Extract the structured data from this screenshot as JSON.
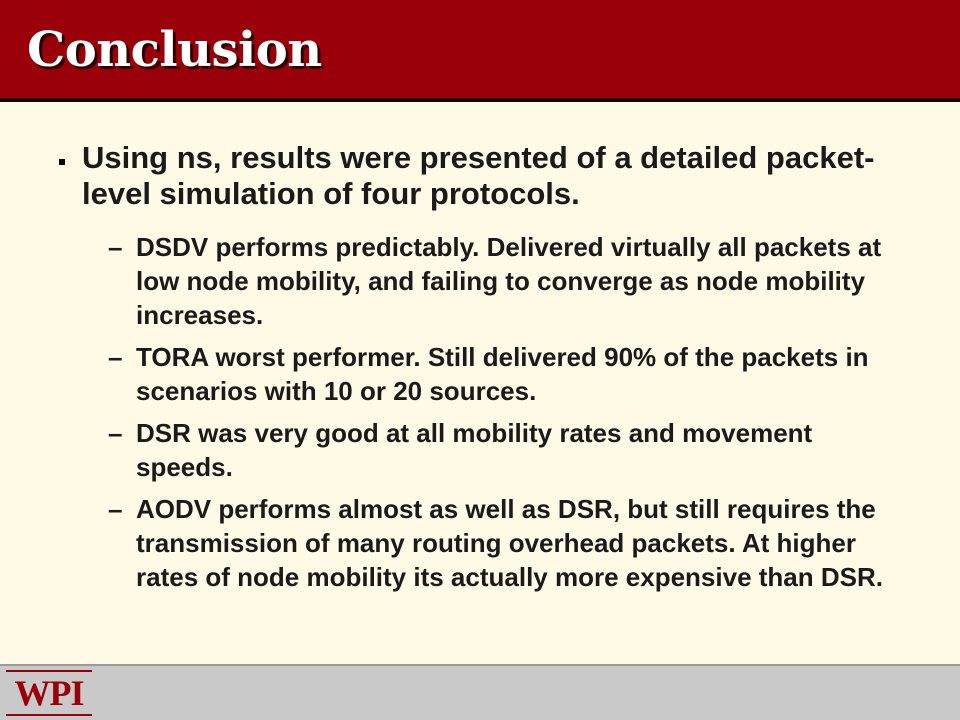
{
  "slide": {
    "title": "Conclusion",
    "main_bullet": "Using ns, results were presented of a detailed packet-level simulation of four protocols.",
    "sub_bullets": [
      {
        "dash": "–",
        "text": "DSDV performs predictably. Delivered virtually all packets at low node mobility, and failing to converge as node mobility increases."
      },
      {
        "dash": "–",
        "text": "TORA worst performer. Still delivered 90% of the packets in scenarios with 10 or 20 sources."
      },
      {
        "dash": "–",
        "text": "DSR was very good at all mobility rates and movement speeds."
      },
      {
        "dash": "–",
        "text": "AODV performs almost as well as DSR, but still requires the transmission of many routing overhead packets. At higher rates of node mobility its actually more expensive than DSR."
      }
    ]
  },
  "footer": {
    "logo_text": "WPI"
  },
  "colors": {
    "title_bar": "#99000a",
    "background": "#fffae6",
    "footer": "#c9c9c9",
    "logo": "#99000a"
  }
}
